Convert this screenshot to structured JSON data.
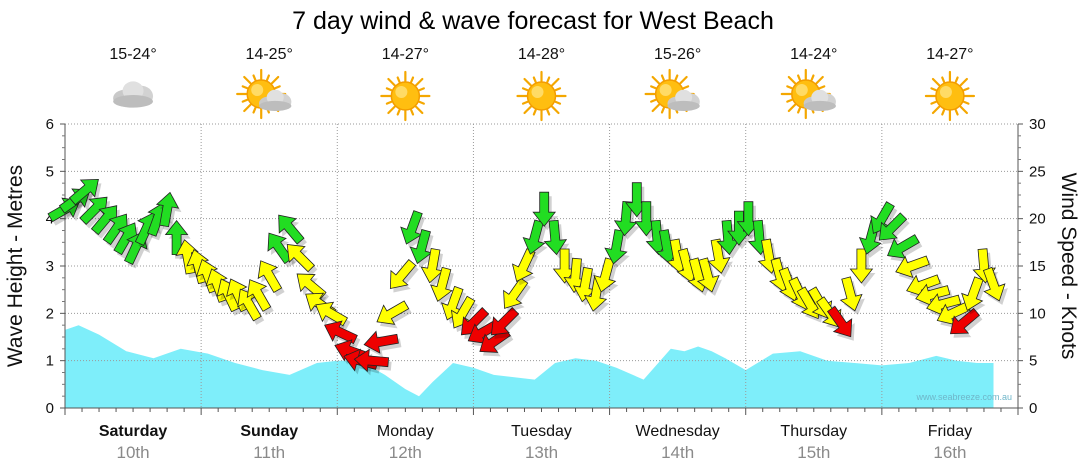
{
  "chart_data": {
    "type": "line",
    "title": "7 day wind & wave forecast for West Beach",
    "ylabel_left": "Wave Height - Metres",
    "ylabel_right": "Wind Speed - Knots",
    "ylim_left": [
      0,
      6
    ],
    "ylim_right": [
      0,
      30
    ],
    "yticks_left": [
      "0",
      "1",
      "2",
      "3",
      "4",
      "5",
      "6"
    ],
    "yticks_right": [
      "0",
      "5",
      "10",
      "15",
      "20",
      "25",
      "30"
    ],
    "credit": "www.seabreeze.com.au",
    "days": [
      {
        "day": "Saturday",
        "date": "10th",
        "bold": true,
        "temp": "15-24°",
        "weather": "cloudy"
      },
      {
        "day": "Sunday",
        "date": "11th",
        "bold": true,
        "temp": "14-25°",
        "weather": "sun-cloud"
      },
      {
        "day": "Monday",
        "date": "12th",
        "bold": false,
        "temp": "14-27°",
        "weather": "sunny"
      },
      {
        "day": "Tuesday",
        "date": "13th",
        "bold": false,
        "temp": "14-28°",
        "weather": "sunny"
      },
      {
        "day": "Wednesday",
        "date": "14th",
        "bold": false,
        "temp": "15-26°",
        "weather": "sun-cloud"
      },
      {
        "day": "Thursday",
        "date": "15th",
        "bold": false,
        "temp": "14-24°",
        "weather": "sun-cloud"
      },
      {
        "day": "Friday",
        "date": "16th",
        "bold": false,
        "temp": "14-27°",
        "weather": "sunny"
      }
    ],
    "series": [
      {
        "name": "Wave Height",
        "units": "metres",
        "t": [
          0,
          0.1,
          0.25,
          0.45,
          0.65,
          0.85,
          1.05,
          1.25,
          1.45,
          1.65,
          1.85,
          2.0,
          2.1,
          2.2,
          2.35,
          2.5,
          2.6,
          2.7,
          2.85,
          3.0,
          3.15,
          3.3,
          3.45,
          3.6,
          3.75,
          3.9,
          4.05,
          4.25,
          4.45,
          4.55,
          4.65,
          4.75,
          4.85,
          5.0,
          5.2,
          5.4,
          5.6,
          5.8,
          6.0,
          6.2,
          6.4,
          6.55,
          6.7,
          6.82
        ],
        "values": [
          1.65,
          1.75,
          1.55,
          1.2,
          1.05,
          1.25,
          1.15,
          0.95,
          0.8,
          0.7,
          0.95,
          1.0,
          1.0,
          0.95,
          0.7,
          0.4,
          0.25,
          0.55,
          0.95,
          0.85,
          0.7,
          0.65,
          0.6,
          0.95,
          1.05,
          1.0,
          0.85,
          0.6,
          1.25,
          1.2,
          1.3,
          1.2,
          1.05,
          0.8,
          1.15,
          1.2,
          1.0,
          0.95,
          0.9,
          0.95,
          1.1,
          1.0,
          0.95,
          0.95
        ]
      },
      {
        "name": "Wind Speed",
        "units": "knots",
        "t": [
          0.0,
          0.08,
          0.15,
          0.22,
          0.3,
          0.38,
          0.45,
          0.52,
          0.6,
          0.68,
          0.75,
          0.82,
          0.9,
          0.98,
          1.05,
          1.12,
          1.2,
          1.27,
          1.35,
          1.42,
          1.5,
          1.57,
          1.65,
          1.72,
          1.8,
          1.87,
          1.95,
          2.02,
          2.1,
          2.17,
          2.25,
          2.32,
          2.4,
          2.47,
          2.55,
          2.62,
          2.7,
          2.77,
          2.85,
          2.92,
          3.0,
          3.07,
          3.15,
          3.22,
          3.3,
          3.37,
          3.45,
          3.52,
          3.6,
          3.67,
          3.75,
          3.82,
          3.9,
          3.97,
          4.05,
          4.12,
          4.2,
          4.27,
          4.35,
          4.42,
          4.5,
          4.57,
          4.65,
          4.72,
          4.8,
          4.87,
          4.95,
          5.02,
          5.1,
          5.17,
          5.25,
          5.32,
          5.4,
          5.47,
          5.55,
          5.62,
          5.7,
          5.77,
          5.85,
          5.92,
          6.0,
          6.07,
          6.15,
          6.22,
          6.3,
          6.37,
          6.45,
          6.52,
          6.6,
          6.67,
          6.75,
          6.82
        ],
        "values": [
          21,
          22,
          23,
          21,
          20,
          19,
          18,
          17,
          19,
          20,
          21,
          18,
          16,
          15,
          14,
          13,
          12,
          12,
          11,
          12,
          14,
          17,
          19,
          16,
          13,
          11,
          10,
          8,
          6,
          5,
          5,
          7,
          10,
          14,
          19,
          17,
          15,
          13,
          11,
          10,
          9,
          8,
          7,
          9,
          12,
          15,
          18,
          21,
          18,
          15,
          14,
          13,
          12,
          14,
          17,
          20,
          22,
          20,
          18,
          17,
          16,
          15,
          14,
          14,
          16,
          18,
          19,
          20,
          18,
          16,
          14,
          13,
          12,
          11,
          11,
          10,
          9,
          12,
          15,
          18,
          20,
          19,
          17,
          15,
          13,
          12,
          11,
          10,
          9,
          12,
          15,
          13
        ],
        "direction_deg": [
          60,
          55,
          50,
          45,
          40,
          35,
          30,
          25,
          25,
          20,
          10,
          0,
          350,
          345,
          340,
          340,
          335,
          335,
          330,
          330,
          330,
          325,
          320,
          315,
          310,
          305,
          300,
          295,
          290,
          285,
          275,
          260,
          240,
          220,
          200,
          195,
          190,
          195,
          200,
          210,
          225,
          240,
          235,
          225,
          215,
          205,
          195,
          180,
          175,
          180,
          185,
          190,
          190,
          195,
          190,
          185,
          180,
          180,
          175,
          170,
          170,
          165,
          165,
          165,
          170,
          175,
          180,
          180,
          175,
          170,
          165,
          160,
          155,
          150,
          150,
          145,
          145,
          165,
          180,
          195,
          210,
          225,
          240,
          250,
          250,
          255,
          255,
          245,
          230,
          200,
          175,
          160
        ],
        "color_thresholds": {
          "red": "<= 9",
          "yellow": "10-16",
          "green": ">= 17"
        }
      }
    ],
    "colors": {
      "wave_fill": "#7eeefa",
      "arrow_green": "#22dd22",
      "arrow_yellow": "#ffff00",
      "arrow_red": "#ee0000"
    }
  }
}
